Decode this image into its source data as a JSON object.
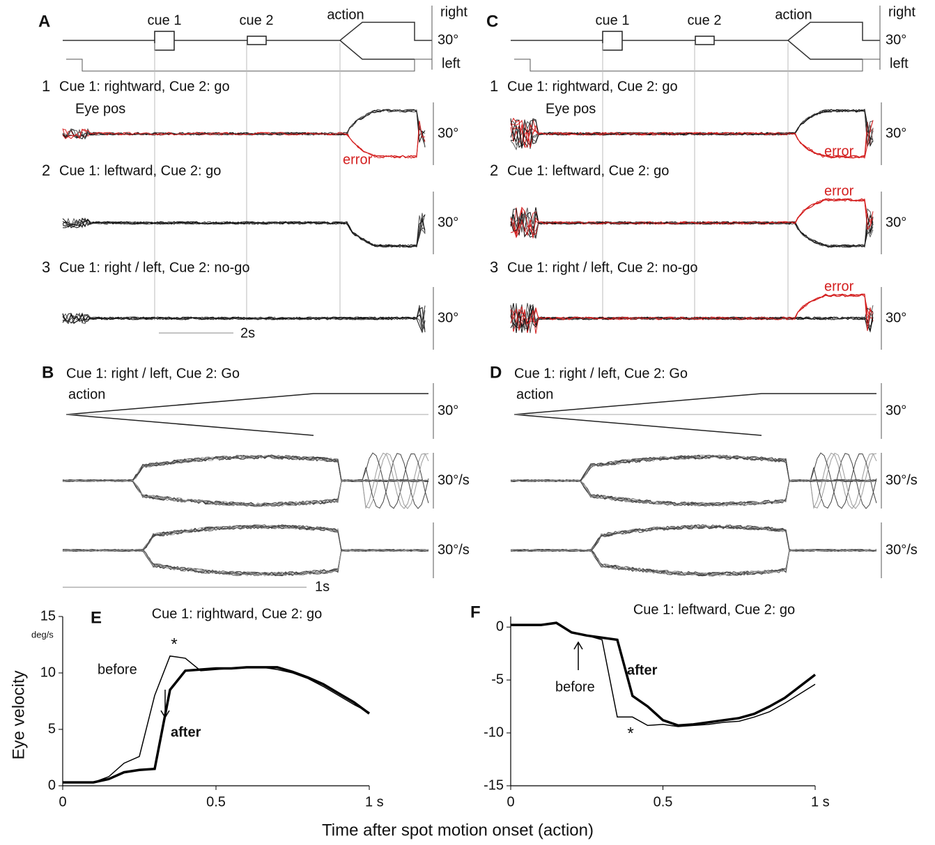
{
  "panels": [
    {
      "label": "A",
      "cues": [
        "cue 1",
        "cue 2",
        "action"
      ],
      "right": "right",
      "left": "left",
      "scale": "30°",
      "eye_pos": "Eye pos",
      "rows": [
        {
          "number": "1",
          "title": "Cue 1: rightward,  Cue 2: go",
          "scale": "30°",
          "error": "error"
        },
        {
          "number": "2",
          "title": "Cue 1: leftward,  Cue 2: go",
          "scale": "30°"
        },
        {
          "number": "3",
          "title": "Cue 1: right / left,  Cue 2: no-go",
          "scale": "30°"
        }
      ],
      "time_scale": "2s"
    },
    {
      "label": "C",
      "cues": [
        "cue 1",
        "cue 2",
        "action"
      ],
      "right": "right",
      "left": "left",
      "scale": "30°",
      "eye_pos": "Eye pos",
      "rows": [
        {
          "number": "1",
          "title": "Cue 1: rightward,  Cue 2: go",
          "scale": "30°",
          "error": "error"
        },
        {
          "number": "2",
          "title": "Cue 1: leftward,  Cue 2: go",
          "scale": "30°",
          "error": "error"
        },
        {
          "number": "3",
          "title": "Cue 1: right / left,  Cue 2: no-go",
          "scale": "30°",
          "error": "error"
        }
      ]
    }
  ],
  "subpanels": [
    {
      "label": "B",
      "title": "Cue 1: right / left,  Cue 2: Go",
      "action": "action",
      "scales": [
        "30°",
        "30°/s",
        "30°/s"
      ],
      "time_scale": "1s"
    },
    {
      "label": "D",
      "title": "Cue 1: right / left,  Cue 2: Go",
      "action": "action",
      "scales": [
        "30°",
        "30°/s",
        "30°/s"
      ]
    }
  ],
  "x_label": "Time after spot motion onset (action)",
  "chart_data": [
    {
      "type": "line",
      "label": "E",
      "title": "Cue 1: rightward,  Cue 2: go",
      "y_label": "Eye velocity",
      "y_unit": "deg/s",
      "x": [
        0,
        0.05,
        0.1,
        0.15,
        0.2,
        0.25,
        0.3,
        0.35,
        0.4,
        0.45,
        0.5,
        0.55,
        0.6,
        0.65,
        0.7,
        0.75,
        0.8,
        0.85,
        0.9,
        0.95,
        1.0
      ],
      "series": [
        {
          "name": "before",
          "color": "#000000",
          "values": [
            0.3,
            0.3,
            0.3,
            0.8,
            2.0,
            2.6,
            8.0,
            11.5,
            11.3,
            10.2,
            10.3,
            10.4,
            10.5,
            10.5,
            10.3,
            10.0,
            9.5,
            8.8,
            8.0,
            7.2,
            6.5
          ]
        },
        {
          "name": "after",
          "color": "#000000",
          "values": [
            0.3,
            0.3,
            0.3,
            0.6,
            1.2,
            1.4,
            1.5,
            8.5,
            10.2,
            10.3,
            10.4,
            10.4,
            10.5,
            10.5,
            10.5,
            10.1,
            9.6,
            9.0,
            8.2,
            7.4,
            6.4
          ]
        }
      ],
      "annotations": [
        "*"
      ],
      "xlim": [
        0,
        1
      ],
      "xticks": [
        0,
        0.5,
        {
          "value": 1,
          "label": "1 s"
        }
      ],
      "ylim": [
        0,
        15
      ],
      "yticks": [
        0,
        5,
        10,
        15
      ]
    },
    {
      "type": "line",
      "label": "F",
      "title": "Cue 1: leftward,  Cue 2: go",
      "x": [
        0,
        0.05,
        0.1,
        0.15,
        0.2,
        0.25,
        0.3,
        0.35,
        0.4,
        0.45,
        0.5,
        0.55,
        0.6,
        0.65,
        0.7,
        0.75,
        0.8,
        0.85,
        0.9,
        0.95,
        1.0
      ],
      "series": [
        {
          "name": "before",
          "color": "#000000",
          "values": [
            0.2,
            0.2,
            0.2,
            0.4,
            -0.5,
            -0.8,
            -1.2,
            -8.5,
            -8.5,
            -9.3,
            -9.2,
            -9.4,
            -9.3,
            -9.2,
            -9.0,
            -8.9,
            -8.5,
            -8.0,
            -7.2,
            -6.3,
            -5.4
          ]
        },
        {
          "name": "after",
          "color": "#000000",
          "values": [
            0.2,
            0.2,
            0.2,
            0.4,
            -0.5,
            -0.8,
            -1.0,
            -1.2,
            -6.5,
            -7.5,
            -8.8,
            -9.3,
            -9.2,
            -9.0,
            -8.8,
            -8.6,
            -8.2,
            -7.5,
            -6.7,
            -5.6,
            -4.5
          ]
        }
      ],
      "annotations": [
        "*"
      ],
      "xlim": [
        0,
        1
      ],
      "xticks": [
        0,
        0.5,
        {
          "value": 1,
          "label": "1 s"
        }
      ],
      "ylim": [
        -15,
        1
      ],
      "yticks": [
        0,
        -5,
        -10,
        -15
      ]
    }
  ]
}
